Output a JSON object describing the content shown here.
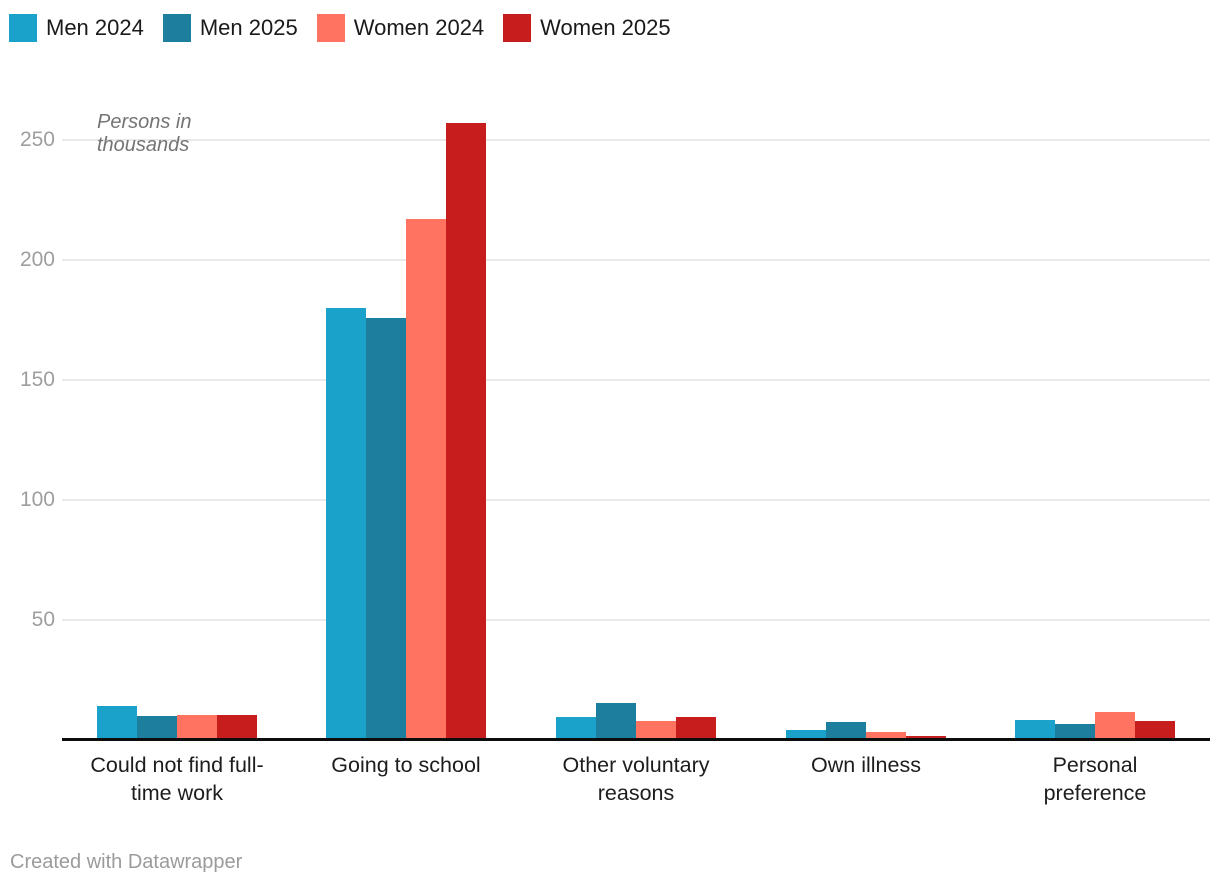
{
  "chart_data": {
    "type": "bar",
    "title": "",
    "ylabel": "Persons in\nthousands",
    "xlabel": "",
    "units": "Persons in thousands",
    "grid": true,
    "legend_position": "top",
    "ylim": [
      0,
      260
    ],
    "yticks": [
      50,
      100,
      150,
      200,
      250
    ],
    "categories": [
      "Could not find full-\ntime work",
      "Going to school",
      "Other voluntary\nreasons",
      "Own illness",
      "Personal\npreference"
    ],
    "series": [
      {
        "name": "Men 2024",
        "color": "#1aa2cb",
        "values": [
          14,
          180,
          9.5,
          4,
          8.5
        ]
      },
      {
        "name": "Men 2025",
        "color": "#1d7f9d",
        "values": [
          10,
          176,
          15.5,
          7.5,
          6.5
        ]
      },
      {
        "name": "Women 2024",
        "color": "#ff7360",
        "values": [
          10.5,
          217,
          8,
          3.5,
          11.5
        ]
      },
      {
        "name": "Women 2025",
        "color": "#c71e1d",
        "values": [
          10.5,
          257,
          9.5,
          1.5,
          8
        ]
      }
    ]
  },
  "footer": {
    "text": "Created with Datawrapper"
  }
}
